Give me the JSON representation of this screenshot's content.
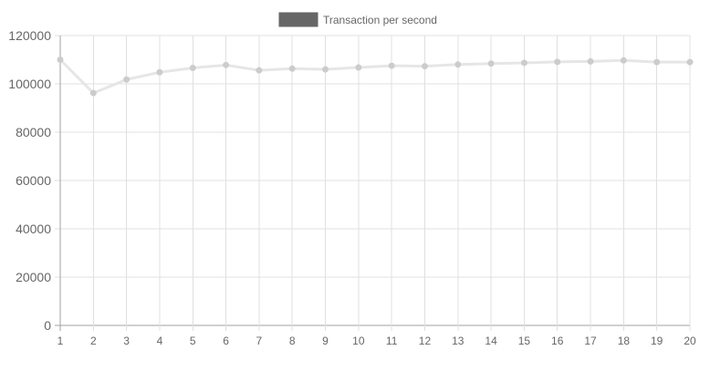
{
  "chart_data": {
    "type": "line",
    "title": "",
    "xlabel": "",
    "ylabel": "",
    "categories": [
      "1",
      "2",
      "3",
      "4",
      "5",
      "6",
      "7",
      "8",
      "9",
      "10",
      "11",
      "12",
      "13",
      "14",
      "15",
      "16",
      "17",
      "18",
      "19",
      "20"
    ],
    "series": [
      {
        "name": "Transaction per second",
        "values": [
          110000,
          96200,
          101800,
          104800,
          106600,
          107800,
          105600,
          106300,
          106000,
          106800,
          107500,
          107300,
          108000,
          108400,
          108700,
          109100,
          109300,
          109700,
          109000,
          109000
        ]
      }
    ],
    "ylim": [
      0,
      120000
    ],
    "yticks": [
      0,
      20000,
      40000,
      60000,
      80000,
      100000,
      120000
    ],
    "grid": true,
    "legend_position": "top-center",
    "colors": {
      "line": "#e6e6e6",
      "point": "#cccccc",
      "legend_swatch": "#666666",
      "grid": "#e0e0e0",
      "axis": "#a0a0a0",
      "tick_text": "#666666"
    }
  }
}
